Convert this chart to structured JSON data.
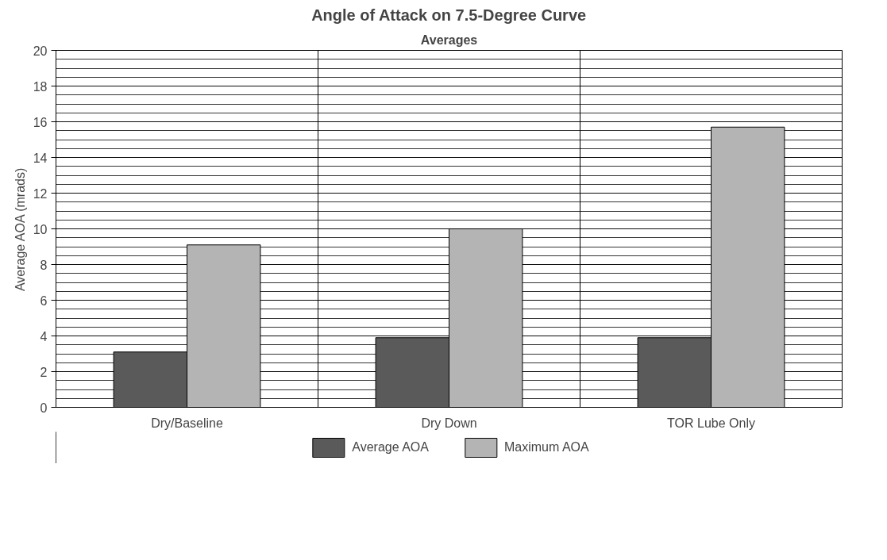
{
  "chart_data": {
    "type": "bar",
    "title": "Angle of Attack on 7.5-Degree Curve",
    "subtitle": "Averages",
    "ylabel": "Average AOA (mrads)",
    "categories": [
      "Dry/Baseline",
      "Dry Down",
      "TOR Lube Only"
    ],
    "series": [
      {
        "name": "Average AOA",
        "color": "#5a5a5a",
        "values": [
          3.1,
          3.9,
          3.9
        ]
      },
      {
        "name": "Maximum AOA",
        "color": "#b4b4b4",
        "values": [
          9.1,
          10.0,
          15.7
        ]
      }
    ],
    "ylim": [
      0,
      20
    ],
    "yticks": [
      0,
      2,
      4,
      6,
      8,
      10,
      12,
      14,
      16,
      18,
      20
    ],
    "grid": true,
    "legend": "bottom"
  }
}
